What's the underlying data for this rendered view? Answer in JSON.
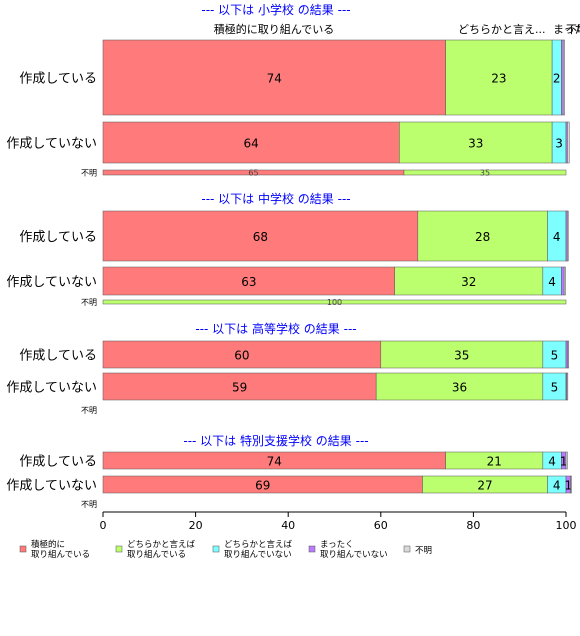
{
  "chart_data": {
    "type": "bar",
    "orientation": "horizontal",
    "stacked": true,
    "xlim": [
      0,
      100
    ],
    "x_ticks": [
      "0",
      "20",
      "40",
      "60",
      "80",
      "100"
    ],
    "category_header_labels": [
      "積極的に取り組んでいる",
      "どちらかと言え...",
      "まった...",
      "不明"
    ],
    "legend": [
      {
        "label": "積極的に\n取り組んでいる",
        "color": "#ff7b7b"
      },
      {
        "label": "どちらかと言えば\n取り組んでいる",
        "color": "#bbff6e"
      },
      {
        "label": "どちらかと言えば\n取り組んでいない",
        "color": "#7dffff"
      },
      {
        "label": "まったく\n取り組んでいない",
        "color": "#b97cff"
      },
      {
        "label": "不明",
        "color": "#d9d9d9"
      }
    ],
    "panels": [
      {
        "title": "--- 以下は 小学校 の結果 ---",
        "rows": [
          {
            "label": "作成している",
            "values": [
              74,
              23,
              2,
              0.4,
              0.3
            ],
            "labels": [
              "74",
              "23",
              "2",
              "",
              ""
            ]
          },
          {
            "label": "作成していない",
            "values": [
              64,
              33,
              3,
              0.3,
              0.4
            ],
            "labels": [
              "64",
              "33",
              "3",
              "",
              ""
            ]
          },
          {
            "label": "不明",
            "values": [
              65,
              35,
              0,
              0,
              0
            ],
            "labels": [
              "65",
              "35",
              "",
              "",
              ""
            ]
          }
        ]
      },
      {
        "title": "--- 以下は 中学校 の結果 ---",
        "rows": [
          {
            "label": "作成している",
            "values": [
              68,
              28,
              4,
              0.3,
              0.2
            ],
            "labels": [
              "68",
              "28",
              "4",
              "",
              ""
            ]
          },
          {
            "label": "作成していない",
            "values": [
              63,
              32,
              4,
              0.6,
              0.3
            ],
            "labels": [
              "63",
              "32",
              "4",
              "",
              ""
            ]
          },
          {
            "label": "不明",
            "values": [
              0,
              100,
              0,
              0,
              0
            ],
            "labels": [
              "",
              "100",
              "",
              "",
              ""
            ]
          }
        ]
      },
      {
        "title": "--- 以下は 高等学校 の結果 ---",
        "rows": [
          {
            "label": "作成している",
            "values": [
              60,
              35,
              5,
              0.4,
              0.2
            ],
            "labels": [
              "60",
              "35",
              "5",
              "",
              ""
            ]
          },
          {
            "label": "作成していない",
            "values": [
              59,
              36,
              5,
              0.2,
              0.2
            ],
            "labels": [
              "59",
              "36",
              "5",
              "",
              ""
            ]
          },
          {
            "label": "不明",
            "values": [
              0,
              0,
              0,
              0,
              0
            ],
            "labels": [
              "",
              "",
              "",
              "",
              ""
            ]
          }
        ]
      },
      {
        "title": "--- 以下は 特別支援学校 の結果 ---",
        "rows": [
          {
            "label": "作成している",
            "values": [
              74,
              21,
              4,
              1,
              0.3
            ],
            "labels": [
              "74",
              "21",
              "4",
              "1",
              ""
            ]
          },
          {
            "label": "作成していない",
            "values": [
              69,
              27,
              4,
              1,
              0.2
            ],
            "labels": [
              "69",
              "27",
              "4",
              "1",
              ""
            ]
          },
          {
            "label": "不明",
            "values": [
              0,
              0,
              0,
              0,
              0
            ],
            "labels": [
              "",
              "",
              "",
              "",
              ""
            ]
          }
        ]
      }
    ]
  }
}
